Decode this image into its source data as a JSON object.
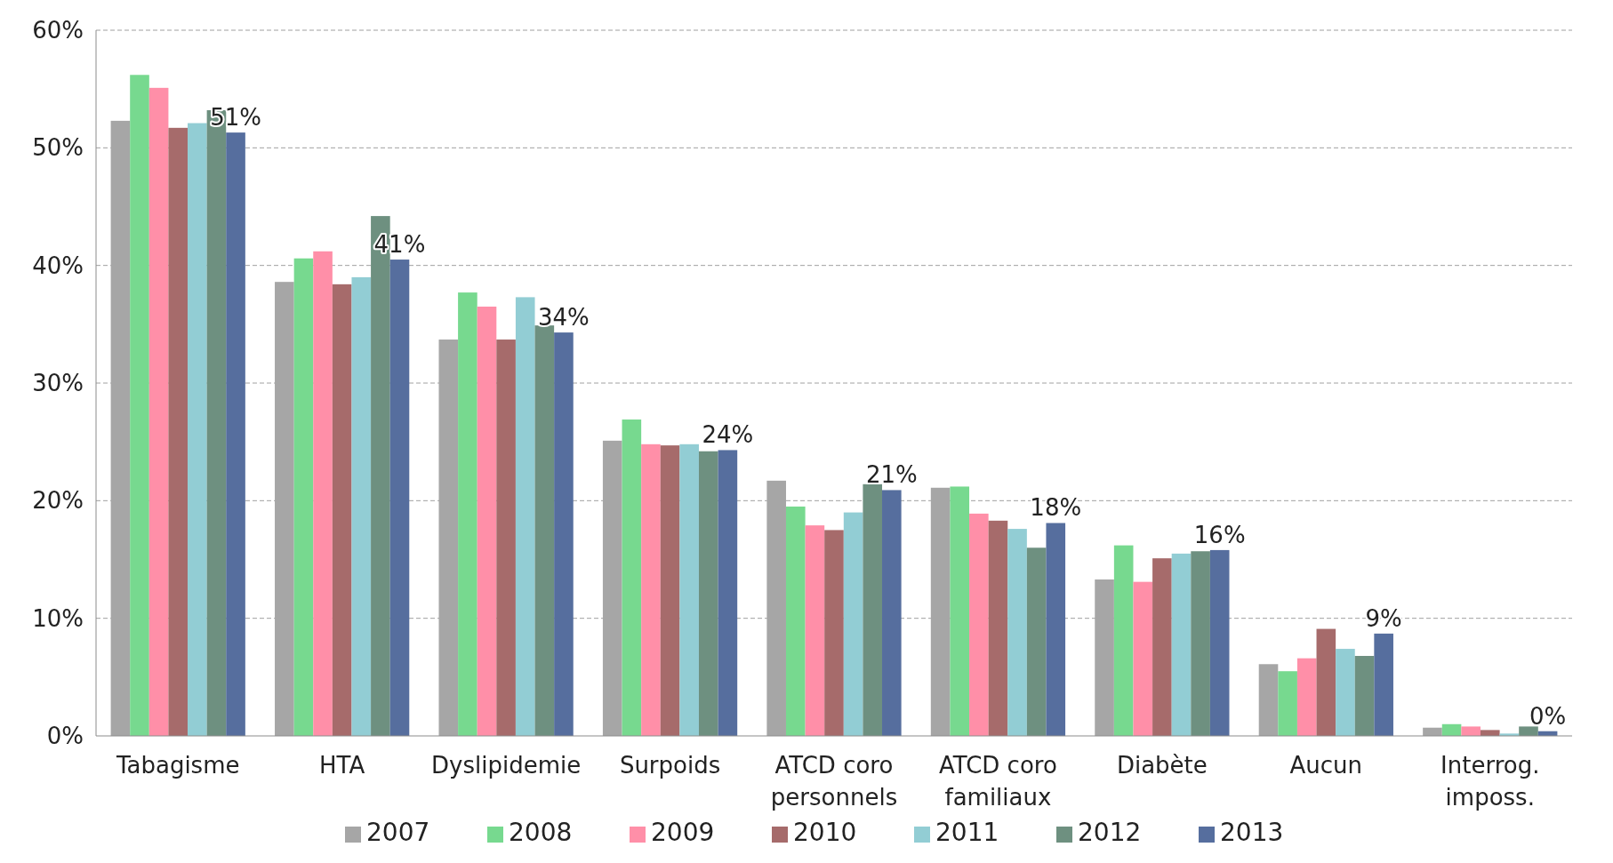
{
  "chart_data": {
    "type": "bar",
    "categories": [
      "Tabagisme",
      "HTA",
      "Dyslipidemie",
      "Surpoids",
      "ATCD coro\npersonnels",
      "ATCD coro\nfamiliaux",
      "Diabète",
      "Aucun",
      "Interrog.\nimposs."
    ],
    "series": [
      {
        "name": "2007",
        "color": "#a6a6a6",
        "values": [
          52.3,
          38.6,
          33.7,
          25.1,
          21.7,
          21.1,
          13.3,
          6.1,
          0.7
        ]
      },
      {
        "name": "2008",
        "color": "#77d98f",
        "values": [
          56.2,
          40.6,
          37.7,
          26.9,
          19.5,
          21.2,
          16.2,
          5.5,
          1.0
        ]
      },
      {
        "name": "2009",
        "color": "#ff8fa8",
        "values": [
          55.1,
          41.2,
          36.5,
          24.8,
          17.9,
          18.9,
          13.1,
          6.6,
          0.8
        ]
      },
      {
        "name": "2010",
        "color": "#a66b6b",
        "values": [
          51.7,
          38.4,
          33.7,
          24.7,
          17.5,
          18.3,
          15.1,
          9.1,
          0.5
        ]
      },
      {
        "name": "2011",
        "color": "#92cdd4",
        "values": [
          52.1,
          39.0,
          37.3,
          24.8,
          19.0,
          17.6,
          15.5,
          7.4,
          0.2
        ]
      },
      {
        "name": "2012",
        "color": "#6e9080",
        "values": [
          53.2,
          44.2,
          34.9,
          24.2,
          21.4,
          16.0,
          15.7,
          6.8,
          0.8
        ]
      },
      {
        "name": "2013",
        "color": "#566e9e",
        "values": [
          51.3,
          40.5,
          34.3,
          24.3,
          20.9,
          18.1,
          15.8,
          8.7,
          0.4
        ],
        "value_labels": [
          "51%",
          "41%",
          "34%",
          "24%",
          "21%",
          "18%",
          "16%",
          "9%",
          "0%"
        ]
      }
    ],
    "ylim": [
      0,
      60
    ],
    "yticks": [
      {
        "value": 0,
        "label": "0%"
      },
      {
        "value": 10,
        "label": "10%"
      },
      {
        "value": 20,
        "label": "20%"
      },
      {
        "value": 30,
        "label": "30%"
      },
      {
        "value": 40,
        "label": "40%"
      },
      {
        "value": 50,
        "label": "50%"
      },
      {
        "value": 60,
        "label": "60%"
      }
    ],
    "grid": "y",
    "legend": "bottom"
  }
}
